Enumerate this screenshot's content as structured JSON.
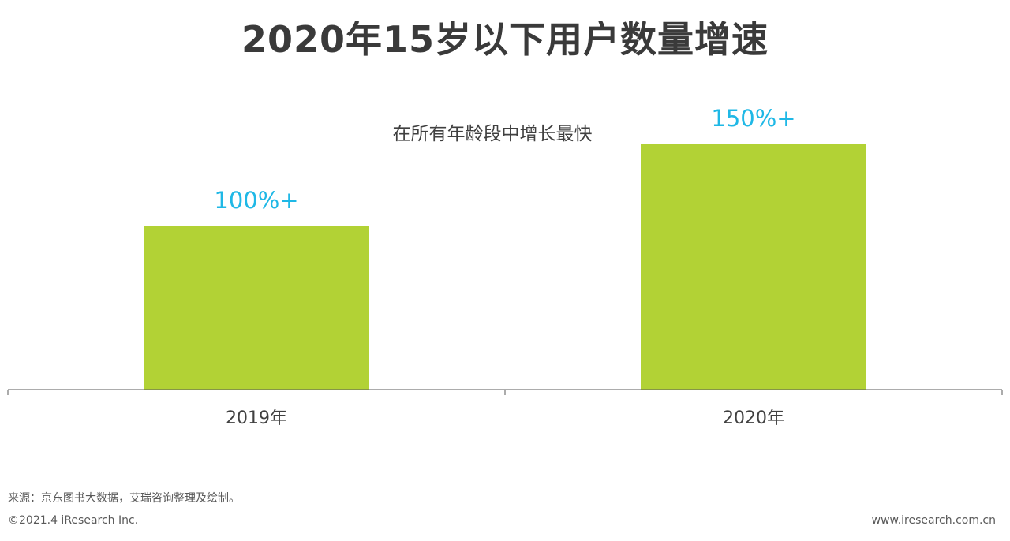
{
  "title": "2020年15岁以下用户数量增速",
  "chart_data": {
    "type": "bar",
    "title": "2020年15岁以下用户数量增速",
    "categories": [
      "2019年",
      "2020年"
    ],
    "values": [
      100,
      150
    ],
    "data_labels": [
      "100%+",
      "150%+"
    ],
    "annotation": "在所有年龄段中增长最快",
    "xlabel": "",
    "ylabel": "",
    "ylim": [
      0,
      150
    ],
    "grid": false,
    "legend": "none",
    "bar_color": "#b2d235",
    "label_color": "#1fb8e6"
  },
  "source": "来源：京东图书大数据，艾瑞咨询整理及绘制。",
  "copyright": "©2021.4 iResearch Inc.",
  "website": "www.iresearch.com.cn"
}
